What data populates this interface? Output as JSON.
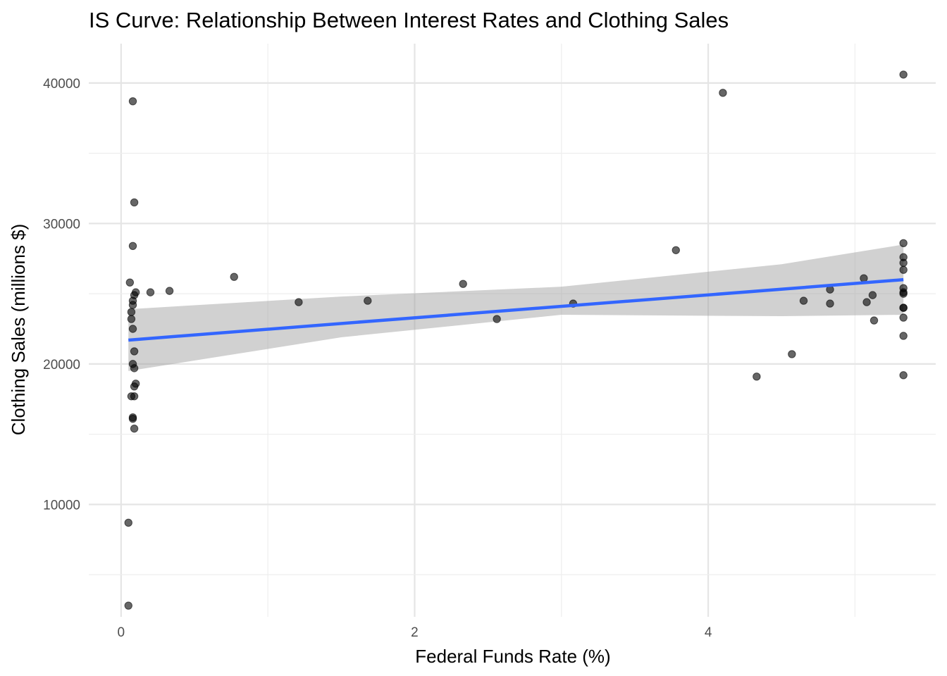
{
  "chart_data": {
    "type": "scatter",
    "title": "IS Curve: Relationship Between Interest Rates and Clothing Sales",
    "xlabel": "Federal Funds Rate (%)",
    "ylabel": "Clothing Sales (millions $)",
    "xlim": [
      -0.22,
      5.55
    ],
    "ylim": [
      2000,
      42800
    ],
    "x_ticks": [
      0,
      2,
      4
    ],
    "y_ticks": [
      10000,
      20000,
      30000,
      40000
    ],
    "grid": true,
    "legend": "none",
    "point_color": "#000000",
    "line_color": "#3366ff",
    "band_color": "#999999",
    "points": [
      {
        "x": 0.05,
        "y": 2800
      },
      {
        "x": 0.05,
        "y": 8700
      },
      {
        "x": 0.09,
        "y": 15400
      },
      {
        "x": 0.08,
        "y": 16100
      },
      {
        "x": 0.08,
        "y": 16200
      },
      {
        "x": 0.07,
        "y": 17700
      },
      {
        "x": 0.09,
        "y": 17700
      },
      {
        "x": 0.09,
        "y": 18400
      },
      {
        "x": 0.1,
        "y": 18600
      },
      {
        "x": 0.09,
        "y": 19700
      },
      {
        "x": 0.08,
        "y": 20000
      },
      {
        "x": 0.09,
        "y": 20900
      },
      {
        "x": 0.08,
        "y": 22500
      },
      {
        "x": 0.07,
        "y": 23200
      },
      {
        "x": 0.07,
        "y": 23700
      },
      {
        "x": 0.08,
        "y": 24200
      },
      {
        "x": 0.08,
        "y": 24500
      },
      {
        "x": 0.09,
        "y": 24900
      },
      {
        "x": 0.1,
        "y": 25100
      },
      {
        "x": 0.06,
        "y": 25800
      },
      {
        "x": 0.08,
        "y": 28400
      },
      {
        "x": 0.09,
        "y": 31500
      },
      {
        "x": 0.08,
        "y": 38700
      },
      {
        "x": 0.2,
        "y": 25100
      },
      {
        "x": 0.33,
        "y": 25200
      },
      {
        "x": 0.77,
        "y": 26200
      },
      {
        "x": 1.21,
        "y": 24400
      },
      {
        "x": 1.68,
        "y": 24500
      },
      {
        "x": 2.33,
        "y": 25700
      },
      {
        "x": 2.56,
        "y": 23200
      },
      {
        "x": 3.08,
        "y": 24300
      },
      {
        "x": 3.78,
        "y": 28100
      },
      {
        "x": 4.1,
        "y": 39300
      },
      {
        "x": 4.33,
        "y": 19100
      },
      {
        "x": 4.57,
        "y": 20700
      },
      {
        "x": 4.65,
        "y": 24500
      },
      {
        "x": 4.83,
        "y": 24300
      },
      {
        "x": 4.83,
        "y": 25300
      },
      {
        "x": 5.06,
        "y": 26100
      },
      {
        "x": 5.08,
        "y": 24400
      },
      {
        "x": 5.12,
        "y": 24900
      },
      {
        "x": 5.13,
        "y": 23100
      },
      {
        "x": 5.33,
        "y": 19200
      },
      {
        "x": 5.33,
        "y": 22000
      },
      {
        "x": 5.33,
        "y": 23300
      },
      {
        "x": 5.33,
        "y": 24000
      },
      {
        "x": 5.33,
        "y": 24000
      },
      {
        "x": 5.33,
        "y": 25000
      },
      {
        "x": 5.33,
        "y": 25100
      },
      {
        "x": 5.33,
        "y": 25400
      },
      {
        "x": 5.33,
        "y": 26700
      },
      {
        "x": 5.33,
        "y": 27200
      },
      {
        "x": 5.33,
        "y": 27600
      },
      {
        "x": 5.33,
        "y": 28600
      },
      {
        "x": 5.33,
        "y": 40600
      }
    ],
    "fit_line": {
      "x": [
        0.05,
        5.33
      ],
      "y": [
        21700,
        26000
      ]
    },
    "confidence_band": {
      "x": [
        0.05,
        1.5,
        3.0,
        4.5,
        5.33
      ],
      "lower": [
        19500,
        21900,
        23500,
        23400,
        23500
      ],
      "upper": [
        23900,
        24800,
        25500,
        27100,
        28500
      ]
    }
  }
}
